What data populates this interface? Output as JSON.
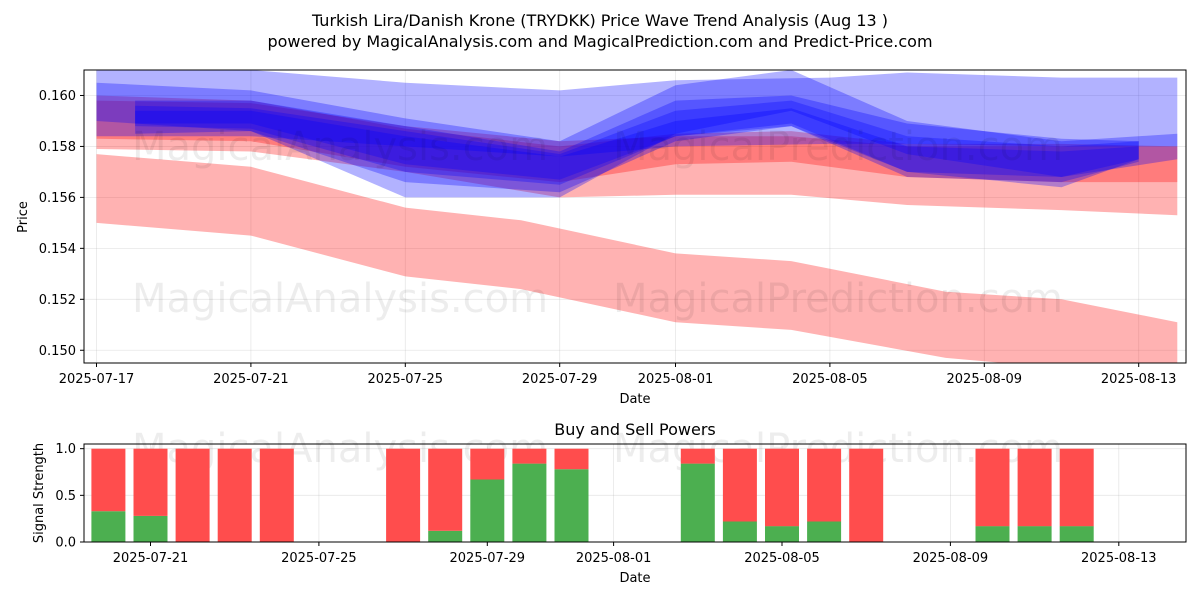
{
  "title_line1": "Turkish Lira/Danish Krone (TRYDKK) Price Wave Trend Analysis (Aug 13 )",
  "title_line2": "powered by MagicalAnalysis.com and MagicalPrediction.com and Predict-Price.com",
  "watermarks": [
    "MagicalAnalysis.com",
    "MagicalPrediction.com"
  ],
  "colors": {
    "red_band": "#ff0000",
    "blue_band": "#0000ff",
    "buy": "#4caf50",
    "sell": "#ff4d4d"
  },
  "chart_data": [
    {
      "type": "area",
      "xlabel": "Date",
      "ylabel": "Price",
      "x_ticks": [
        "2025-07-17",
        "2025-07-21",
        "2025-07-25",
        "2025-07-29",
        "2025-08-01",
        "2025-08-05",
        "2025-08-09",
        "2025-08-13"
      ],
      "y_ticks": [
        "0.150",
        "0.152",
        "0.154",
        "0.156",
        "0.158",
        "0.160"
      ],
      "ylim": [
        0.1495,
        0.161
      ],
      "grid": true,
      "bands": [
        {
          "color": "red",
          "dates": [
            "2025-07-17",
            "2025-07-21",
            "2025-07-25",
            "2025-07-28",
            "2025-08-01",
            "2025-08-04",
            "2025-08-08",
            "2025-08-11",
            "2025-08-14"
          ],
          "upper": [
            0.1577,
            0.1572,
            0.1556,
            0.1551,
            0.1538,
            0.1535,
            0.1523,
            0.152,
            0.1511
          ],
          "lower": [
            0.155,
            0.1545,
            0.1529,
            0.1524,
            0.1511,
            0.1508,
            0.1497,
            0.1493,
            0.1484
          ]
        },
        {
          "color": "red",
          "dates": [
            "2025-07-17",
            "2025-07-21",
            "2025-07-25",
            "2025-07-29",
            "2025-08-01",
            "2025-08-04",
            "2025-08-07",
            "2025-08-11",
            "2025-08-14"
          ],
          "upper": [
            0.1598,
            0.1597,
            0.1588,
            0.1582,
            0.1584,
            0.1584,
            0.158,
            0.158,
            0.158
          ],
          "lower": [
            0.1579,
            0.1578,
            0.157,
            0.156,
            0.1561,
            0.1561,
            0.1557,
            0.1555,
            0.1553
          ]
        },
        {
          "color": "red",
          "dates": [
            "2025-07-17",
            "2025-07-21",
            "2025-07-25",
            "2025-07-29",
            "2025-08-01",
            "2025-08-04",
            "2025-08-07",
            "2025-08-11",
            "2025-08-14"
          ],
          "upper": [
            0.16,
            0.1598,
            0.1587,
            0.158,
            0.1585,
            0.1586,
            0.1581,
            0.1581,
            0.158
          ],
          "lower": [
            0.1583,
            0.1582,
            0.1572,
            0.1566,
            0.1573,
            0.1574,
            0.1568,
            0.1566,
            0.1566
          ]
        },
        {
          "color": "blue",
          "dates": [
            "2025-07-17",
            "2025-07-21",
            "2025-07-25",
            "2025-07-29",
            "2025-08-01",
            "2025-08-05",
            "2025-08-07",
            "2025-08-11",
            "2025-08-14"
          ],
          "upper": [
            0.161,
            0.161,
            0.1605,
            0.1602,
            0.1606,
            0.1607,
            0.1609,
            0.1607,
            0.1607
          ],
          "lower": [
            0.1584,
            0.1584,
            0.158,
            0.1576,
            0.158,
            0.1581,
            0.1581,
            0.158,
            0.158
          ]
        },
        {
          "color": "blue",
          "dates": [
            "2025-07-17",
            "2025-07-21",
            "2025-07-25",
            "2025-07-29",
            "2025-08-01",
            "2025-08-04",
            "2025-08-07",
            "2025-08-11",
            "2025-08-14"
          ],
          "upper": [
            0.1605,
            0.1602,
            0.1591,
            0.1582,
            0.1604,
            0.161,
            0.159,
            0.1582,
            0.1585
          ],
          "lower": [
            0.159,
            0.1586,
            0.156,
            0.156,
            0.1585,
            0.1594,
            0.1577,
            0.1568,
            0.1575
          ]
        },
        {
          "color": "blue",
          "dates": [
            "2025-07-18",
            "2025-07-21",
            "2025-07-25",
            "2025-07-29",
            "2025-08-01",
            "2025-08-04",
            "2025-08-07",
            "2025-08-11",
            "2025-08-13"
          ],
          "upper": [
            0.1598,
            0.1598,
            0.1588,
            0.1578,
            0.1598,
            0.16,
            0.1589,
            0.1583,
            0.1582
          ],
          "lower": [
            0.1585,
            0.1586,
            0.1566,
            0.1562,
            0.1582,
            0.1588,
            0.157,
            0.1564,
            0.1575
          ]
        },
        {
          "color": "blue",
          "dates": [
            "2025-07-18",
            "2025-07-21",
            "2025-07-25",
            "2025-07-29",
            "2025-08-01",
            "2025-08-04",
            "2025-08-07",
            "2025-08-11",
            "2025-08-13"
          ],
          "upper": [
            0.1596,
            0.1595,
            0.1586,
            0.1577,
            0.1594,
            0.1598,
            0.1584,
            0.158,
            0.1582
          ],
          "lower": [
            0.1588,
            0.1587,
            0.157,
            0.1565,
            0.1584,
            0.1588,
            0.1568,
            0.1566,
            0.1574
          ]
        },
        {
          "color": "blue",
          "dates": [
            "2025-07-18",
            "2025-07-21",
            "2025-07-25",
            "2025-07-29",
            "2025-08-01",
            "2025-08-04",
            "2025-08-07",
            "2025-08-11",
            "2025-08-13"
          ],
          "upper": [
            0.1594,
            0.1594,
            0.1584,
            0.1576,
            0.159,
            0.1595,
            0.158,
            0.1578,
            0.158
          ],
          "lower": [
            0.1589,
            0.1589,
            0.1573,
            0.1567,
            0.1584,
            0.1589,
            0.157,
            0.1568,
            0.1575
          ]
        }
      ]
    },
    {
      "type": "bar",
      "title": "Buy and Sell Powers",
      "xlabel": "Date",
      "ylabel": "Signal Strength",
      "x_ticks": [
        "2025-07-21",
        "2025-07-25",
        "2025-07-29",
        "2025-08-01",
        "2025-08-05",
        "2025-08-09",
        "2025-08-13"
      ],
      "y_ticks": [
        "0.0",
        "0.5",
        "1.0"
      ],
      "ylim": [
        0,
        1.05
      ],
      "categories": [
        "2025-07-20",
        "2025-07-21",
        "2025-07-22",
        "2025-07-23",
        "2025-07-24",
        "2025-07-27",
        "2025-07-28",
        "2025-07-29",
        "2025-07-30",
        "2025-07-31",
        "2025-08-03",
        "2025-08-04",
        "2025-08-05",
        "2025-08-06",
        "2025-08-07",
        "2025-08-10",
        "2025-08-11",
        "2025-08-12"
      ],
      "series": [
        {
          "name": "buy",
          "values": [
            0.33,
            0.28,
            0,
            0,
            0,
            0,
            0.12,
            0.67,
            0.84,
            0.78,
            0.84,
            0.22,
            0.17,
            0.22,
            0,
            0.17,
            0.17,
            0.17
          ]
        },
        {
          "name": "sell",
          "values": [
            0.67,
            0.72,
            1,
            1,
            1,
            1,
            0.88,
            0.33,
            0.16,
            0.22,
            0.16,
            0.78,
            0.83,
            0.78,
            1,
            0.83,
            0.83,
            0.83
          ]
        }
      ]
    }
  ]
}
